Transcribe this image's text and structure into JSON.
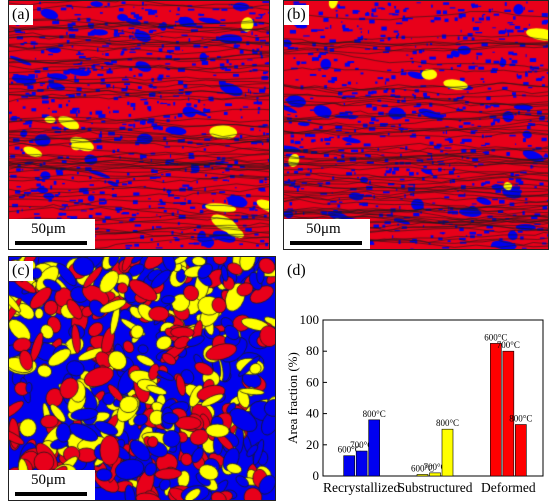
{
  "figure": {
    "panels": [
      {
        "id": "a",
        "label": "(a)",
        "scale_label": "50μm"
      },
      {
        "id": "b",
        "label": "(b)",
        "scale_label": "50μm"
      },
      {
        "id": "c",
        "label": "(c)",
        "scale_label": "50μm"
      },
      {
        "id": "d",
        "label": "(d)"
      }
    ],
    "map_colors": {
      "deformed": "#e8001a",
      "substructured": "#ffff00",
      "recrystallized": "#0000f0",
      "boundary": "#1a1a1a"
    }
  },
  "chart_data": {
    "type": "bar",
    "categories": [
      "Recrystallized",
      "Substructured",
      "Deformed"
    ],
    "ylabel": "Area fraction (%)",
    "ylim": [
      0,
      100
    ],
    "yticks": [
      0,
      20,
      40,
      60,
      80,
      100
    ],
    "bar_labels": [
      "600°C",
      "700°C",
      "800°C"
    ],
    "series": [
      {
        "category": "Recrystallized",
        "color": "#0000f0",
        "values": [
          13,
          16,
          36
        ]
      },
      {
        "category": "Substructured",
        "color": "#ffff00",
        "values": [
          1,
          2,
          30
        ]
      },
      {
        "category": "Deformed",
        "color": "#ff0000",
        "values": [
          85,
          80,
          33
        ]
      }
    ]
  }
}
